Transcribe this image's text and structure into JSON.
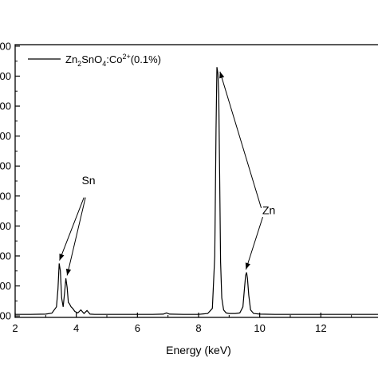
{
  "chart_data": {
    "type": "line",
    "title": "",
    "xlabel": "Energy (keV)",
    "ylabel": "",
    "xlim": [
      2,
      14
    ],
    "ylim": [
      0,
      900
    ],
    "x_ticks": [
      2,
      4,
      6,
      8,
      10,
      12
    ],
    "x_tick_labels": [
      "2",
      "4",
      "6",
      "8",
      "10",
      "12"
    ],
    "y_ticks": [
      0,
      100,
      200,
      300,
      400,
      500,
      600,
      700,
      800,
      900
    ],
    "y_tick_labels": [
      "00",
      "00",
      "00",
      "00",
      "00",
      "00",
      "00",
      "00",
      "00",
      "00"
    ],
    "grid": false,
    "legend": {
      "position": "top-left",
      "entries": [
        {
          "base": "Zn",
          "sub1": "2",
          "mid": "SnO",
          "sub2": "4",
          "mid2": ":Co",
          "sup": "2+",
          "tail": "(0.1%)"
        }
      ]
    },
    "series": [
      {
        "x": [
          2.0,
          2.5,
          3.0,
          3.2,
          3.35,
          3.4,
          3.44,
          3.48,
          3.52,
          3.57,
          3.62,
          3.66,
          3.7,
          3.74,
          3.78,
          3.83,
          3.88,
          3.95,
          4.05,
          4.15,
          4.25,
          4.35,
          4.45,
          4.6,
          5.0,
          5.5,
          6.0,
          6.5,
          6.85,
          6.95,
          7.05,
          7.5,
          8.0,
          8.3,
          8.45,
          8.53,
          8.57,
          8.6,
          8.63,
          8.66,
          8.69,
          8.72,
          8.76,
          8.82,
          8.9,
          9.0,
          9.2,
          9.35,
          9.45,
          9.5,
          9.54,
          9.57,
          9.6,
          9.64,
          9.7,
          9.8,
          10.0,
          10.5,
          11.0,
          12.0,
          13.0,
          14.0
        ],
        "y": [
          5,
          5,
          6,
          9,
          30,
          90,
          175,
          150,
          60,
          30,
          80,
          125,
          95,
          45,
          40,
          30,
          25,
          15,
          10,
          20,
          8,
          18,
          6,
          5,
          5,
          5,
          5,
          5,
          6,
          10,
          6,
          5,
          5,
          8,
          25,
          200,
          620,
          830,
          810,
          740,
          480,
          180,
          60,
          20,
          10,
          8,
          8,
          10,
          30,
          90,
          135,
          145,
          125,
          70,
          20,
          8,
          6,
          5,
          5,
          5,
          5,
          5
        ]
      }
    ],
    "annotations": [
      {
        "text": "Sn",
        "x": 4.4,
        "y": 440
      },
      {
        "text": "Zn",
        "x": 10.3,
        "y": 340
      }
    ],
    "arrows": [
      {
        "from": [
          4.25,
          395
        ],
        "to": [
          3.45,
          185
        ]
      },
      {
        "from": [
          4.3,
          395
        ],
        "to": [
          3.7,
          135
        ]
      },
      {
        "from": [
          10.05,
          360
        ],
        "to": [
          8.7,
          815
        ]
      },
      {
        "from": [
          10.1,
          330
        ],
        "to": [
          9.55,
          155
        ]
      }
    ]
  }
}
